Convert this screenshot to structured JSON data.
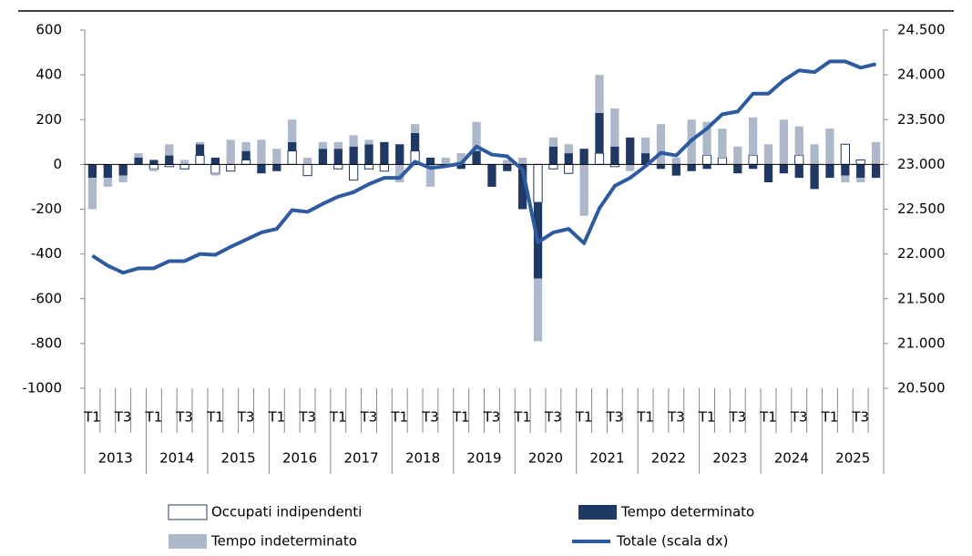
{
  "chart_data": {
    "type": "bar-line",
    "categories": [
      "T1",
      null,
      "T3",
      null,
      "T1",
      null,
      "T3",
      null,
      "T1",
      null,
      "T3",
      null,
      "T1",
      null,
      "T3",
      null,
      "T1",
      null,
      "T3",
      null,
      "T1",
      null,
      "T3",
      null,
      "T1",
      null,
      "T3",
      null,
      "T1",
      null,
      "T3",
      null,
      "T1",
      null,
      "T3",
      null,
      "T1",
      null,
      "T3",
      null,
      "T1",
      null,
      "T3",
      null,
      "T1",
      null,
      "T3",
      null,
      "T1",
      null,
      "T3",
      null
    ],
    "years": [
      "2013",
      "2014",
      "2015",
      "2016",
      "2017",
      "2018",
      "2019",
      "2020",
      "2021",
      "2022",
      "2023",
      "2024",
      "2025"
    ],
    "series": [
      {
        "name": "Occupati indipendenti",
        "color": "#1f3864",
        "fill": "#ffffff",
        "values": [
          0,
          0,
          0,
          0,
          -20,
          -10,
          -20,
          40,
          -40,
          -30,
          20,
          0,
          0,
          60,
          -50,
          0,
          -20,
          -70,
          -20,
          -30,
          0,
          60,
          0,
          0,
          0,
          0,
          0,
          0,
          0,
          -170,
          -20,
          -40,
          0,
          50,
          -10,
          0,
          0,
          0,
          0,
          0,
          40,
          30,
          0,
          40,
          0,
          0,
          40,
          0,
          0,
          90,
          20,
          0
        ]
      },
      {
        "name": "Tempo determinato",
        "color": "#1f3864",
        "values": [
          -60,
          -60,
          -50,
          30,
          20,
          40,
          0,
          50,
          30,
          0,
          40,
          -40,
          -30,
          40,
          0,
          70,
          70,
          80,
          90,
          100,
          90,
          80,
          30,
          -10,
          -20,
          60,
          -100,
          -30,
          -200,
          -340,
          80,
          50,
          70,
          180,
          80,
          120,
          50,
          -20,
          -50,
          -30,
          -20,
          0,
          -40,
          -20,
          -80,
          -40,
          -60,
          -110,
          -60,
          -50,
          -60,
          -60
        ]
      },
      {
        "name": "Tempo indeterminato",
        "color": "#adb9ca",
        "values": [
          -140,
          -40,
          -30,
          20,
          -10,
          50,
          20,
          10,
          -10,
          110,
          40,
          110,
          70,
          100,
          30,
          30,
          30,
          50,
          20,
          0,
          -80,
          40,
          -100,
          30,
          50,
          130,
          0,
          20,
          30,
          -280,
          40,
          40,
          -230,
          170,
          170,
          -30,
          70,
          180,
          30,
          200,
          150,
          130,
          80,
          170,
          90,
          200,
          130,
          90,
          160,
          -30,
          -20,
          100
        ]
      },
      {
        "name": "Totale (scala dx)",
        "color": "#2e5aa0",
        "axis": "y2",
        "values": [
          21980,
          21870,
          21790,
          21840,
          21840,
          21920,
          21920,
          22000,
          21990,
          22080,
          22160,
          22240,
          22280,
          22490,
          22470,
          22560,
          22640,
          22690,
          22780,
          22850,
          22850,
          23030,
          22960,
          22980,
          23010,
          23200,
          23110,
          23090,
          22940,
          22130,
          22240,
          22280,
          22120,
          22510,
          22760,
          22850,
          22980,
          23130,
          23100,
          23270,
          23400,
          23560,
          23590,
          23790,
          23790,
          23940,
          24050,
          24030,
          24150,
          24150,
          24080,
          24120
        ]
      }
    ],
    "ylim": [
      -1000,
      600
    ],
    "yticks": [
      -1000,
      -800,
      -600,
      -400,
      -200,
      0,
      200,
      400,
      600
    ],
    "y2lim": [
      20500,
      24500
    ],
    "y2ticks": [
      {
        "value": 20500,
        "label": "20.500"
      },
      {
        "value": 21000,
        "label": "21.000"
      },
      {
        "value": 21500,
        "label": "21.500"
      },
      {
        "value": 22000,
        "label": "22.000"
      },
      {
        "value": 22500,
        "label": "22.500"
      },
      {
        "value": 23000,
        "label": "23.000"
      },
      {
        "value": 23500,
        "label": "23.500"
      },
      {
        "value": 24000,
        "label": "24.000"
      },
      {
        "value": 24500,
        "label": "24.500"
      }
    ],
    "stacked": true,
    "grid": false,
    "legend": "bottom"
  }
}
